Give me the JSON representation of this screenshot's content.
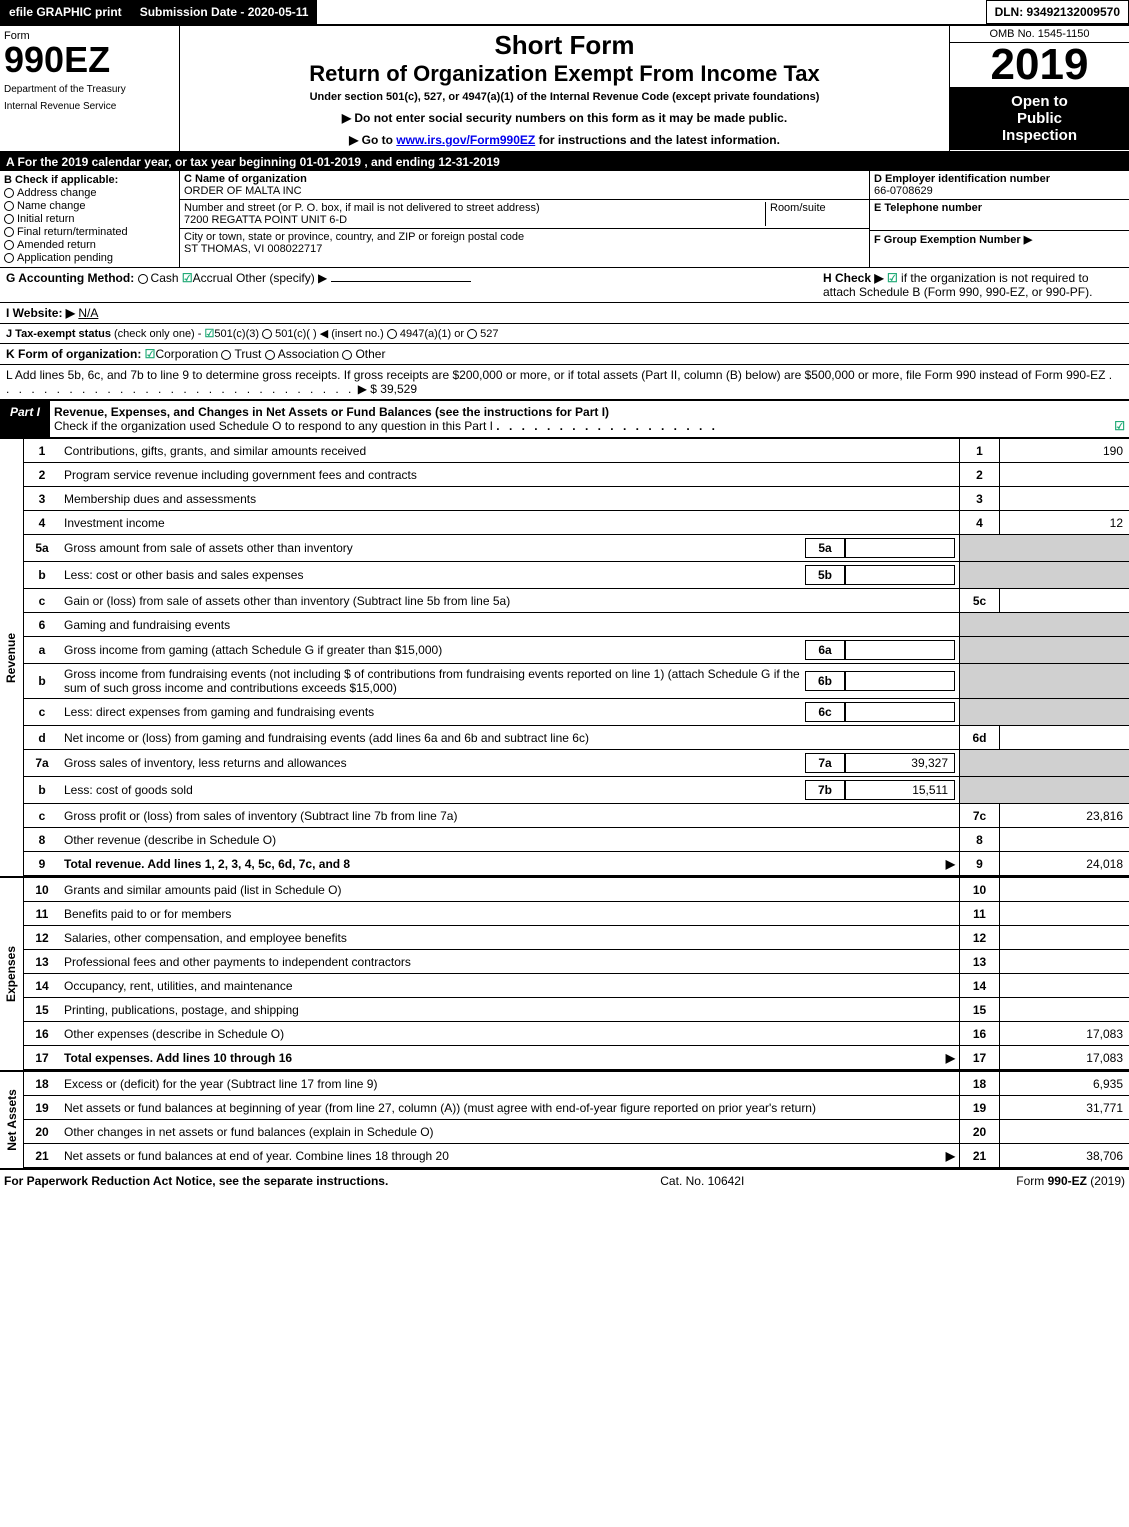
{
  "topbar": {
    "efile": "efile GRAPHIC print",
    "submission": "Submission Date - 2020-05-11",
    "dln": "DLN: 93492132009570"
  },
  "header": {
    "form_label": "Form",
    "form_no": "990EZ",
    "dept1": "Department of the Treasury",
    "dept2": "Internal Revenue Service",
    "short_form": "Short Form",
    "title": "Return of Organization Exempt From Income Tax",
    "subtitle": "Under section 501(c), 527, or 4947(a)(1) of the Internal Revenue Code (except private foundations)",
    "arrow1": "▶ Do not enter social security numbers on this form as it may be made public.",
    "arrow2_pre": "▶ Go to ",
    "arrow2_link": "www.irs.gov/Form990EZ",
    "arrow2_post": " for instructions and the latest information.",
    "omb": "OMB No. 1545-1150",
    "year": "2019",
    "open1": "Open to",
    "open2": "Public",
    "open3": "Inspection"
  },
  "calendar": "A  For the 2019 calendar year, or tax year beginning 01-01-2019 , and ending 12-31-2019",
  "secB": {
    "title": "B  Check if applicable:",
    "o1": "Address change",
    "o2": "Name change",
    "o3": "Initial return",
    "o4": "Final return/terminated",
    "o5": "Amended return",
    "o6": "Application pending"
  },
  "secC": {
    "name_label": "C Name of organization",
    "name": "ORDER OF MALTA INC",
    "addr_label": "Number and street (or P. O. box, if mail is not delivered to street address)",
    "room_label": "Room/suite",
    "addr": "7200 REGATTA POINT UNIT 6-D",
    "city_label": "City or town, state or province, country, and ZIP or foreign postal code",
    "city": "ST THOMAS, VI  008022717"
  },
  "secD": {
    "d_label": "D Employer identification number",
    "ein": "66-0708629",
    "e_label": "E Telephone number",
    "f_label": "F Group Exemption Number  ▶"
  },
  "g": {
    "label": "G Accounting Method:",
    "cash": "Cash",
    "accrual": "Accrual",
    "other": "Other (specify) ▶"
  },
  "h": {
    "label": "H  Check ▶",
    "text": "if the organization is not required to attach Schedule B (Form 990, 990-EZ, or 990-PF)."
  },
  "i": {
    "label": "I Website: ▶",
    "val": "N/A"
  },
  "j": {
    "label": "J Tax-exempt status",
    "text": "(check only one) -",
    "o1": "501(c)(3)",
    "o2": "501(c)(  ) ◀ (insert no.)",
    "o3": "4947(a)(1) or",
    "o4": "527"
  },
  "k": {
    "label": "K Form of organization:",
    "o1": "Corporation",
    "o2": "Trust",
    "o3": "Association",
    "o4": "Other"
  },
  "l": {
    "text": "L Add lines 5b, 6c, and 7b to line 9 to determine gross receipts. If gross receipts are $200,000 or more, or if total assets (Part II, column (B) below) are $500,000 or more, file Form 990 instead of Form 990-EZ",
    "arrow": "▶ $ 39,529"
  },
  "part1": {
    "label": "Part I",
    "title": "Revenue, Expenses, and Changes in Net Assets or Fund Balances (see the instructions for Part I)",
    "sub": "Check if the organization used Schedule O to respond to any question in this Part I",
    "checked": "☑"
  },
  "sections": {
    "revenue": "Revenue",
    "expenses": "Expenses",
    "netassets": "Net Assets"
  },
  "rows": [
    {
      "n": "1",
      "d": "Contributions, gifts, grants, and similar amounts received",
      "box": "1",
      "v": "190"
    },
    {
      "n": "2",
      "d": "Program service revenue including government fees and contracts",
      "box": "2",
      "v": ""
    },
    {
      "n": "3",
      "d": "Membership dues and assessments",
      "box": "3",
      "v": ""
    },
    {
      "n": "4",
      "d": "Investment income",
      "box": "4",
      "v": "12"
    },
    {
      "n": "5a",
      "d": "Gross amount from sale of assets other than inventory",
      "sb": "5a",
      "sv": "",
      "shade": true
    },
    {
      "n": "b",
      "d": "Less: cost or other basis and sales expenses",
      "sb": "5b",
      "sv": "",
      "shade": true
    },
    {
      "n": "c",
      "d": "Gain or (loss) from sale of assets other than inventory (Subtract line 5b from line 5a)",
      "box": "5c",
      "v": ""
    },
    {
      "n": "6",
      "d": "Gaming and fundraising events",
      "shade": true,
      "novalue": true
    },
    {
      "n": "a",
      "d": "Gross income from gaming (attach Schedule G if greater than $15,000)",
      "sb": "6a",
      "sv": "",
      "shade": true
    },
    {
      "n": "b",
      "d": "Gross income from fundraising events (not including $                of contributions from fundraising events reported on line 1) (attach Schedule G if the sum of such gross income and contributions exceeds $15,000)",
      "sb": "6b",
      "sv": "",
      "shade": true
    },
    {
      "n": "c",
      "d": "Less: direct expenses from gaming and fundraising events",
      "sb": "6c",
      "sv": "",
      "shade": true
    },
    {
      "n": "d",
      "d": "Net income or (loss) from gaming and fundraising events (add lines 6a and 6b and subtract line 6c)",
      "box": "6d",
      "v": ""
    },
    {
      "n": "7a",
      "d": "Gross sales of inventory, less returns and allowances",
      "sb": "7a",
      "sv": "39,327",
      "shade": true
    },
    {
      "n": "b",
      "d": "Less: cost of goods sold",
      "sb": "7b",
      "sv": "15,511",
      "shade": true
    },
    {
      "n": "c",
      "d": "Gross profit or (loss) from sales of inventory (Subtract line 7b from line 7a)",
      "box": "7c",
      "v": "23,816"
    },
    {
      "n": "8",
      "d": "Other revenue (describe in Schedule O)",
      "box": "8",
      "v": ""
    },
    {
      "n": "9",
      "d": "Total revenue. Add lines 1, 2, 3, 4, 5c, 6d, 7c, and 8",
      "box": "9",
      "v": "24,018",
      "bold": true,
      "arrow": true
    }
  ],
  "exp_rows": [
    {
      "n": "10",
      "d": "Grants and similar amounts paid (list in Schedule O)",
      "box": "10",
      "v": ""
    },
    {
      "n": "11",
      "d": "Benefits paid to or for members",
      "box": "11",
      "v": ""
    },
    {
      "n": "12",
      "d": "Salaries, other compensation, and employee benefits",
      "box": "12",
      "v": ""
    },
    {
      "n": "13",
      "d": "Professional fees and other payments to independent contractors",
      "box": "13",
      "v": ""
    },
    {
      "n": "14",
      "d": "Occupancy, rent, utilities, and maintenance",
      "box": "14",
      "v": ""
    },
    {
      "n": "15",
      "d": "Printing, publications, postage, and shipping",
      "box": "15",
      "v": ""
    },
    {
      "n": "16",
      "d": "Other expenses (describe in Schedule O)",
      "box": "16",
      "v": "17,083"
    },
    {
      "n": "17",
      "d": "Total expenses. Add lines 10 through 16",
      "box": "17",
      "v": "17,083",
      "bold": true,
      "arrow": true
    }
  ],
  "na_rows": [
    {
      "n": "18",
      "d": "Excess or (deficit) for the year (Subtract line 17 from line 9)",
      "box": "18",
      "v": "6,935"
    },
    {
      "n": "19",
      "d": "Net assets or fund balances at beginning of year (from line 27, column (A)) (must agree with end-of-year figure reported on prior year's return)",
      "box": "19",
      "v": "31,771"
    },
    {
      "n": "20",
      "d": "Other changes in net assets or fund balances (explain in Schedule O)",
      "box": "20",
      "v": ""
    },
    {
      "n": "21",
      "d": "Net assets or fund balances at end of year. Combine lines 18 through 20",
      "box": "21",
      "v": "38,706",
      "arrow": true
    }
  ],
  "footer": {
    "left": "For Paperwork Reduction Act Notice, see the separate instructions.",
    "mid": "Cat. No. 10642I",
    "right": "Form 990-EZ (2019)"
  }
}
